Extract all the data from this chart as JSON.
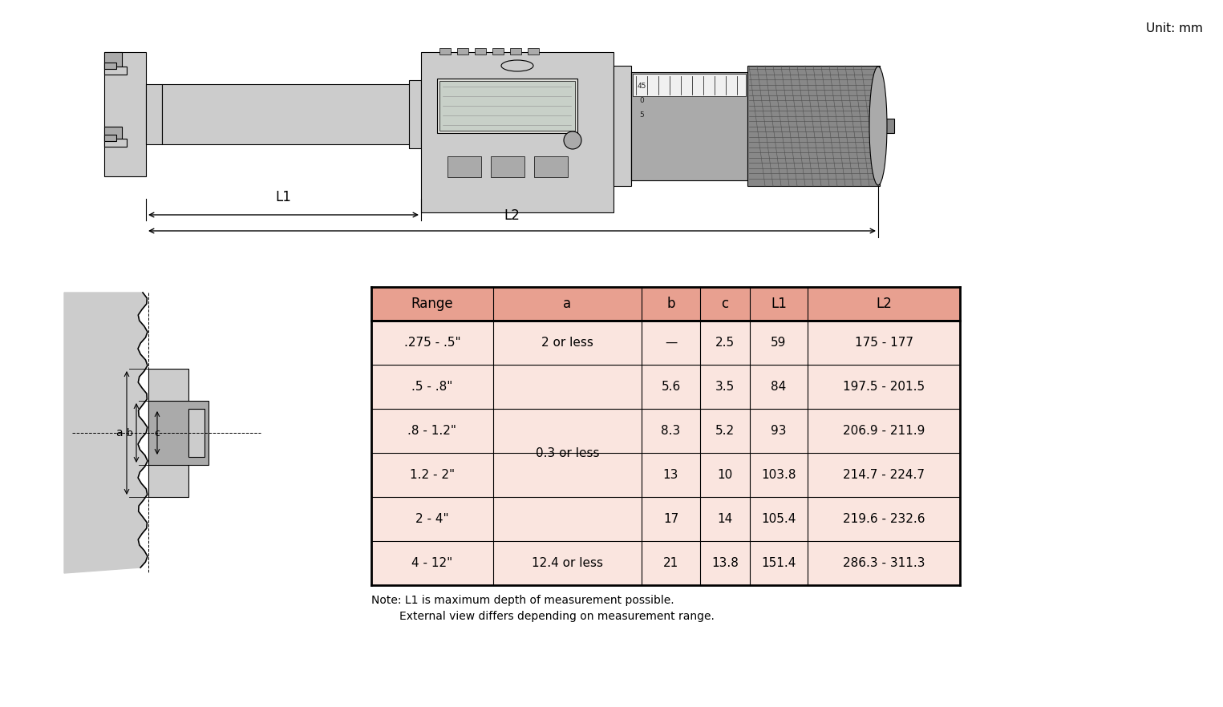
{
  "unit_label": "Unit: mm",
  "table_header": [
    "Range",
    "a",
    "b",
    "c",
    "L1",
    "L2"
  ],
  "table_rows": [
    [
      ".275 - .5\"",
      "2 or less",
      "—",
      "2.5",
      "59",
      "175 - 177"
    ],
    [
      ".5 - .8\"",
      "",
      "5.6",
      "3.5",
      "84",
      "197.5 - 201.5"
    ],
    [
      ".8 - 1.2\"",
      "",
      "8.3",
      "5.2",
      "93",
      "206.9 - 211.9"
    ],
    [
      "1.2 - 2\"",
      "0.3 or less",
      "13",
      "10",
      "103.8",
      "214.7 - 224.7"
    ],
    [
      "2 - 4\"",
      "",
      "17",
      "14",
      "105.4",
      "219.6 - 232.6"
    ],
    [
      "4 - 12\"",
      "12.4 or less",
      "21",
      "13.8",
      "151.4",
      "286.3 - 311.3"
    ]
  ],
  "note_line1": "Note: L1 is maximum depth of measurement possible.",
  "note_line2": "        External view differs depending on measurement range.",
  "header_bg": "#E8A090",
  "row_bg": "#FAE5DF",
  "border_color": "#000000",
  "text_color": "#000000",
  "bg_color": "#FFFFFF",
  "gray1": "#CCCCCC",
  "gray2": "#AAAAAA",
  "gray3": "#888888",
  "gray4": "#DDDDDD",
  "gray5": "#666666"
}
